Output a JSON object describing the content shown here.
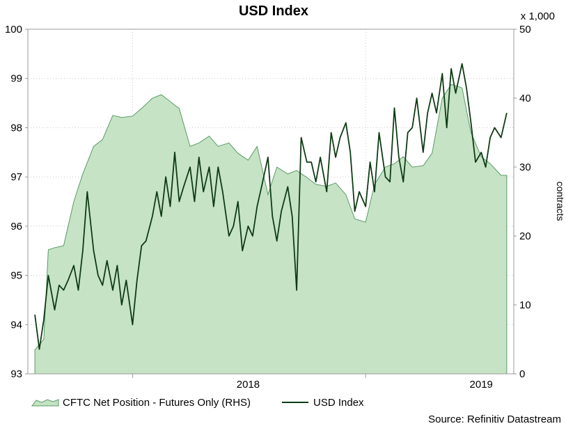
{
  "chart_data": {
    "type": "line",
    "title": "USD Index",
    "x_axis": {
      "tick_labels": [
        "2018",
        "2019"
      ]
    },
    "y_left": {
      "min": 93,
      "max": 100,
      "ticks": [
        93,
        94,
        95,
        96,
        97,
        98,
        99,
        100
      ]
    },
    "y_right": {
      "min": 0,
      "max": 50,
      "ticks": [
        0,
        10,
        20,
        30,
        40,
        50
      ],
      "multiplier": "x 1,000",
      "label": "contracts"
    },
    "grid": true,
    "legend_position": "bottom",
    "source": "Source: Refinitiv Datastream",
    "series": [
      {
        "name": "CFTC Net Position - Futures Only (RHS)",
        "type": "area",
        "axis": "right",
        "color": "#5a9a66",
        "fill": "#c3e2c3",
        "x": [
          "2017-08-01",
          "2017-08-15",
          "2017-08-22",
          "2017-09-01",
          "2017-09-15",
          "2017-10-01",
          "2017-10-15",
          "2017-11-01",
          "2017-11-15",
          "2017-12-01",
          "2017-12-15",
          "2018-01-01",
          "2018-01-15",
          "2018-02-01",
          "2018-02-15",
          "2018-03-01",
          "2018-03-15",
          "2018-04-01",
          "2018-04-15",
          "2018-05-01",
          "2018-05-15",
          "2018-06-01",
          "2018-06-15",
          "2018-07-01",
          "2018-07-15",
          "2018-08-01",
          "2018-08-15",
          "2018-09-01",
          "2018-09-15",
          "2018-10-01",
          "2018-10-15",
          "2018-11-01",
          "2018-11-15",
          "2018-12-01",
          "2018-12-15",
          "2019-01-01",
          "2019-01-15",
          "2019-02-01",
          "2019-02-15",
          "2019-03-01",
          "2019-03-15",
          "2019-04-01",
          "2019-04-15",
          "2019-05-01",
          "2019-05-15",
          "2019-06-01",
          "2019-06-15",
          "2019-07-01",
          "2019-07-15",
          "2019-08-01",
          "2019-08-10"
        ],
        "values": [
          3.5,
          5,
          18,
          18.3,
          18.6,
          25,
          29,
          33,
          34,
          37.5,
          37.2,
          37.4,
          38.5,
          40,
          40.5,
          39.5,
          38.5,
          33,
          33.5,
          34.5,
          33,
          33.5,
          32,
          31,
          33,
          26,
          30,
          29,
          29.5,
          28.5,
          27.5,
          27.2,
          27.7,
          26,
          22.5,
          22,
          27.5,
          30,
          30.5,
          31.5,
          30,
          30.2,
          32,
          40,
          42,
          41.5,
          35,
          31.5,
          30.5,
          28.8,
          28.8
        ]
      },
      {
        "name": "USD Index",
        "type": "line",
        "axis": "left",
        "color": "#0f3b14",
        "x": [
          "2017-08-01",
          "2017-08-08",
          "2017-08-15",
          "2017-08-22",
          "2017-09-01",
          "2017-09-08",
          "2017-09-15",
          "2017-09-22",
          "2017-10-01",
          "2017-10-08",
          "2017-10-15",
          "2017-10-22",
          "2017-11-01",
          "2017-11-08",
          "2017-11-15",
          "2017-11-22",
          "2017-12-01",
          "2017-12-08",
          "2017-12-15",
          "2017-12-22",
          "2018-01-01",
          "2018-01-08",
          "2018-01-15",
          "2018-01-22",
          "2018-02-01",
          "2018-02-08",
          "2018-02-15",
          "2018-02-22",
          "2018-03-01",
          "2018-03-08",
          "2018-03-15",
          "2018-03-22",
          "2018-04-01",
          "2018-04-08",
          "2018-04-15",
          "2018-04-22",
          "2018-05-01",
          "2018-05-08",
          "2018-05-15",
          "2018-05-22",
          "2018-06-01",
          "2018-06-08",
          "2018-06-15",
          "2018-06-22",
          "2018-07-01",
          "2018-07-08",
          "2018-07-15",
          "2018-07-22",
          "2018-08-01",
          "2018-08-08",
          "2018-08-15",
          "2018-08-22",
          "2018-09-01",
          "2018-09-08",
          "2018-09-15",
          "2018-09-22",
          "2018-10-01",
          "2018-10-08",
          "2018-10-15",
          "2018-10-22",
          "2018-11-01",
          "2018-11-08",
          "2018-11-15",
          "2018-11-22",
          "2018-12-01",
          "2018-12-08",
          "2018-12-15",
          "2018-12-22",
          "2019-01-01",
          "2019-01-08",
          "2019-01-15",
          "2019-01-22",
          "2019-02-01",
          "2019-02-08",
          "2019-02-15",
          "2019-02-22",
          "2019-03-01",
          "2019-03-08",
          "2019-03-15",
          "2019-03-22",
          "2019-04-01",
          "2019-04-08",
          "2019-04-15",
          "2019-04-22",
          "2019-05-01",
          "2019-05-08",
          "2019-05-15",
          "2019-05-22",
          "2019-06-01",
          "2019-06-08",
          "2019-06-15",
          "2019-06-22",
          "2019-07-01",
          "2019-07-08",
          "2019-07-15",
          "2019-07-22",
          "2019-08-01",
          "2019-08-10"
        ],
        "values": [
          94.2,
          93.5,
          94.1,
          95.0,
          94.3,
          94.8,
          94.7,
          94.9,
          95.2,
          94.7,
          95.5,
          96.7,
          95.5,
          95.0,
          94.8,
          95.3,
          94.7,
          95.2,
          94.4,
          94.9,
          94.0,
          94.9,
          95.6,
          95.7,
          96.2,
          96.7,
          96.2,
          97.0,
          96.4,
          97.5,
          96.5,
          96.8,
          97.2,
          96.5,
          97.4,
          96.7,
          97.2,
          96.4,
          97.2,
          96.7,
          95.8,
          96.0,
          96.5,
          95.5,
          96.0,
          95.8,
          96.4,
          96.8,
          97.4,
          96.2,
          95.7,
          96.3,
          96.8,
          96.2,
          94.7,
          97.8,
          97.3,
          97.3,
          96.9,
          97.4,
          96.7,
          97.9,
          97.4,
          97.8,
          98.1,
          97.5,
          96.3,
          96.7,
          96.4,
          97.3,
          96.7,
          97.9,
          97.0,
          96.9,
          98.4,
          97.4,
          96.9,
          97.9,
          98.0,
          98.6,
          97.5,
          98.3,
          98.7,
          98.3,
          99.1,
          98.0,
          99.2,
          98.7,
          99.3,
          98.8,
          98.1,
          97.3,
          97.5,
          97.2,
          97.8,
          98.0,
          97.8,
          98.3
        ]
      }
    ]
  }
}
